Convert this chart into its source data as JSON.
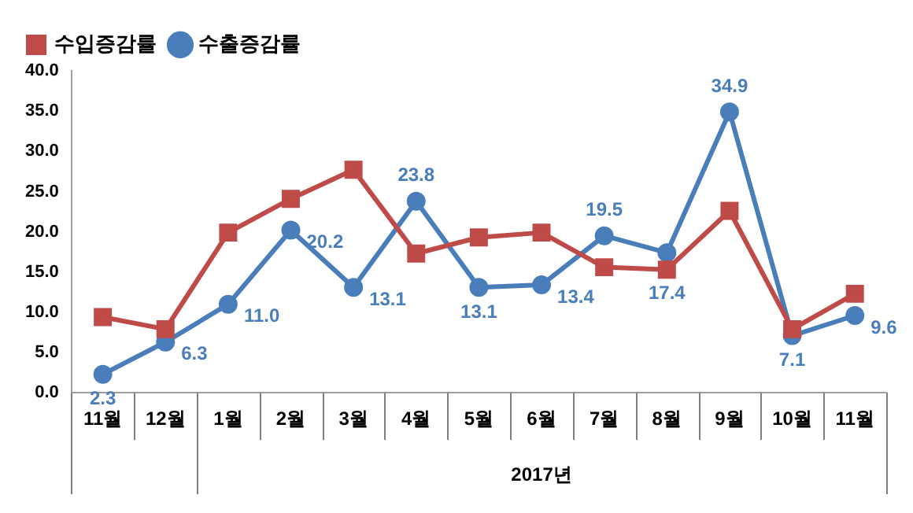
{
  "chart_data": {
    "type": "line",
    "categories": [
      "11월",
      "12월",
      "1월",
      "2월",
      "3월",
      "4월",
      "5월",
      "6월",
      "7월",
      "8월",
      "9월",
      "10월",
      "11월"
    ],
    "series": [
      {
        "name": "수출증감률",
        "color": "#4a7ebb",
        "marker": "circle",
        "values": [
          2.3,
          6.3,
          11.0,
          20.2,
          13.1,
          23.8,
          13.1,
          13.4,
          19.5,
          17.4,
          34.9,
          7.1,
          9.6
        ],
        "value_labels": [
          "2.3",
          "6.3",
          "11.0",
          "20.2",
          "13.1",
          "23.8",
          "13.1",
          "13.4",
          "19.5",
          "17.4",
          "34.9",
          "7.1",
          "9.6"
        ]
      },
      {
        "name": "수입증감률",
        "color": "#be4b48",
        "marker": "square",
        "values": [
          9.4,
          7.9,
          19.9,
          24.1,
          27.7,
          17.3,
          19.3,
          19.9,
          15.6,
          15.3,
          22.6,
          7.9,
          12.3
        ]
      }
    ],
    "ylim": [
      0,
      40
    ],
    "yticks": [
      {
        "value": 0,
        "label": "0.0"
      },
      {
        "value": 5,
        "label": "5.0"
      },
      {
        "value": 10,
        "label": "10.0"
      },
      {
        "value": 15,
        "label": "15.0"
      },
      {
        "value": 20,
        "label": "20.0"
      },
      {
        "value": 25,
        "label": "25.0"
      },
      {
        "value": 30,
        "label": "30.0"
      },
      {
        "value": 35,
        "label": "35.0"
      },
      {
        "value": 40,
        "label": "40.0"
      }
    ],
    "annotations": [
      "2017년"
    ],
    "grid": false,
    "legend": "top left",
    "line_style": "solid"
  }
}
